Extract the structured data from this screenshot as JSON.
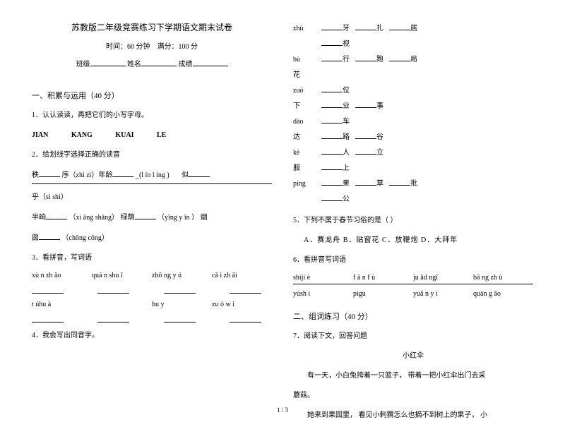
{
  "header": {
    "title": "苏教版二年级竞赛练习下学期语文期末试卷",
    "time_label": "时间：",
    "time_value": "60 分钟",
    "score_label": "满分：",
    "score_value": "100 分",
    "class_label": "班级",
    "name_label": "姓名",
    "grade_label": "成绩"
  },
  "sec1": {
    "heading": "一、积累与运用（40 分）",
    "q1": {
      "num": "1．",
      "text": "认认读读，再把它们的小写字母。",
      "letters": [
        "JIAN",
        "KANG",
        "KUAI",
        "LE"
      ]
    },
    "q2": {
      "num": "2．",
      "text": "给划线字选择正确的读音",
      "line1_a": "秩",
      "line1_b": "序（zhì  zì）年龄",
      "line1_c": "_(l ín  l íng )",
      "line1_d": "似",
      "line2": "乎（sì  shì）",
      "line3_a": "半晌",
      "line3_b": "（xi ǎng  shǎng）  绿荫",
      "line3_c": "（yīng y īn ）   烟",
      "line4": "囱",
      "line4_b": "（chōng  cōng）"
    },
    "q3": {
      "num": "3．",
      "text": "看拼音，写词语",
      "row1": [
        "xù n zh ǎo",
        "quá n shu ǐ",
        "zhō ng y ú",
        "cǎ i zh āi"
      ],
      "row2": [
        "t úhu à",
        "",
        "hu y",
        "zu ò w i"
      ]
    },
    "q4": {
      "num": "4．",
      "text": "我会写出同音字。"
    }
  },
  "right": {
    "chars": [
      {
        "py": "zhù",
        "items": [
          "牙",
          "扎",
          "居"
        ]
      },
      {
        "py": "",
        "items": [
          "视"
        ]
      },
      {
        "py": "bù",
        "items": [
          "行",
          "跑",
          "局"
        ]
      },
      {
        "py": "花",
        "items": []
      },
      {
        "py": "zuò",
        "items": [
          "位"
        ]
      },
      {
        "py": "下",
        "items": [
          "业",
          "事"
        ]
      },
      {
        "py": "dào",
        "items": [
          "车"
        ]
      },
      {
        "py": "达",
        "items": [
          "路",
          "谷"
        ]
      },
      {
        "py": "kè",
        "items": [
          "人",
          "立"
        ]
      },
      {
        "py": "服",
        "items": [
          "上"
        ]
      },
      {
        "py": "píng",
        "items": [
          "果",
          "草",
          "批"
        ]
      },
      {
        "py": "",
        "items": [
          "公"
        ]
      }
    ],
    "q5": {
      "num": "5．",
      "text": "下列不属于春节习俗的是（          ）",
      "opts": "A．赛龙舟    B．贴窗花    C．放鞭炮    D．大拜年"
    },
    "q6": {
      "num": "6．",
      "text": "看拼音写词语",
      "row1": [
        "shìji è",
        "f ā n f ù",
        "ju ǎd ngī",
        "bā ng zh ù"
      ],
      "row2": [
        "yúsh ì",
        "pìgu",
        "yuā n y ì",
        "quán g āo"
      ]
    },
    "sec2": "二、组词练习（40 分）",
    "q7": {
      "num": "7．",
      "text": "阅读下文，回答问题",
      "title": "小红伞",
      "p1": "有一天，小白兔挎着一只篮子，  带着一把小红伞出门去采",
      "p1b": "蘑菇。",
      "p2": "她来到果园里，  看见小刺猬怎么也摘不到树上的果子，  小"
    }
  },
  "footer": "1 / 3"
}
